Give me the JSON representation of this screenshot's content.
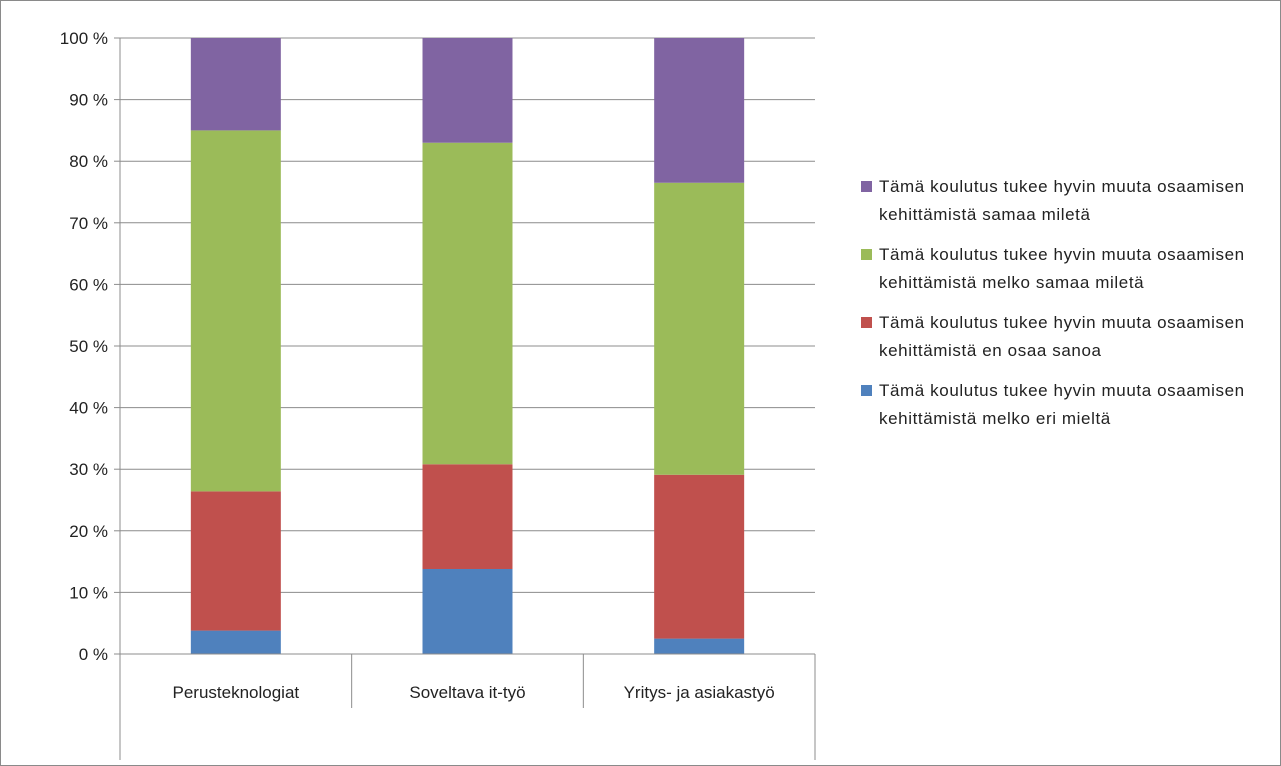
{
  "chart_data": {
    "type": "bar",
    "stacked": true,
    "percent": true,
    "categories": [
      "Perusteknologiat",
      "Soveltava it-työ",
      "Yritys- ja asiakastyö"
    ],
    "ylim": [
      0,
      100
    ],
    "yticks": [
      "0 %",
      "10 %",
      "20 %",
      "30 %",
      "40 %",
      "50 %",
      "60 %",
      "70 %",
      "80 %",
      "90 %",
      "100 %"
    ],
    "grid": true,
    "legend_position": "right",
    "series": [
      {
        "name": "Tämä koulutus tukee hyvin muuta osaamisen kehittämistä melko eri mieltä",
        "color": "#4f81bd",
        "values": [
          3.8,
          13.8,
          2.5
        ]
      },
      {
        "name": "Tämä koulutus tukee hyvin muuta osaamisen kehittämistä en osaa sanoa",
        "color": "#c0504d",
        "values": [
          22.6,
          17.0,
          26.6
        ]
      },
      {
        "name": "Tämä koulutus tukee hyvin muuta osaamisen kehittämistä melko samaa mieletä",
        "color": "#9bbb59",
        "values": [
          58.6,
          52.2,
          47.4
        ]
      },
      {
        "name": "Tämä koulutus tukee hyvin muuta osaamisen kehittämistä samaa miletä",
        "color": "#8064a2",
        "values": [
          15.0,
          17.0,
          23.5
        ]
      }
    ]
  },
  "legend": {
    "items": [
      {
        "label": "Tämä koulutus tukee hyvin muuta osaamisen kehittämistä samaa miletä",
        "color": "#8064a2"
      },
      {
        "label": "Tämä koulutus tukee hyvin muuta osaamisen kehittämistä melko samaa miletä",
        "color": "#9bbb59"
      },
      {
        "label": "Tämä koulutus tukee hyvin muuta osaamisen kehittämistä en osaa sanoa",
        "color": "#c0504d"
      },
      {
        "label": "Tämä koulutus tukee hyvin muuta osaamisen kehittämistä melko eri mieltä",
        "color": "#4f81bd"
      }
    ]
  }
}
